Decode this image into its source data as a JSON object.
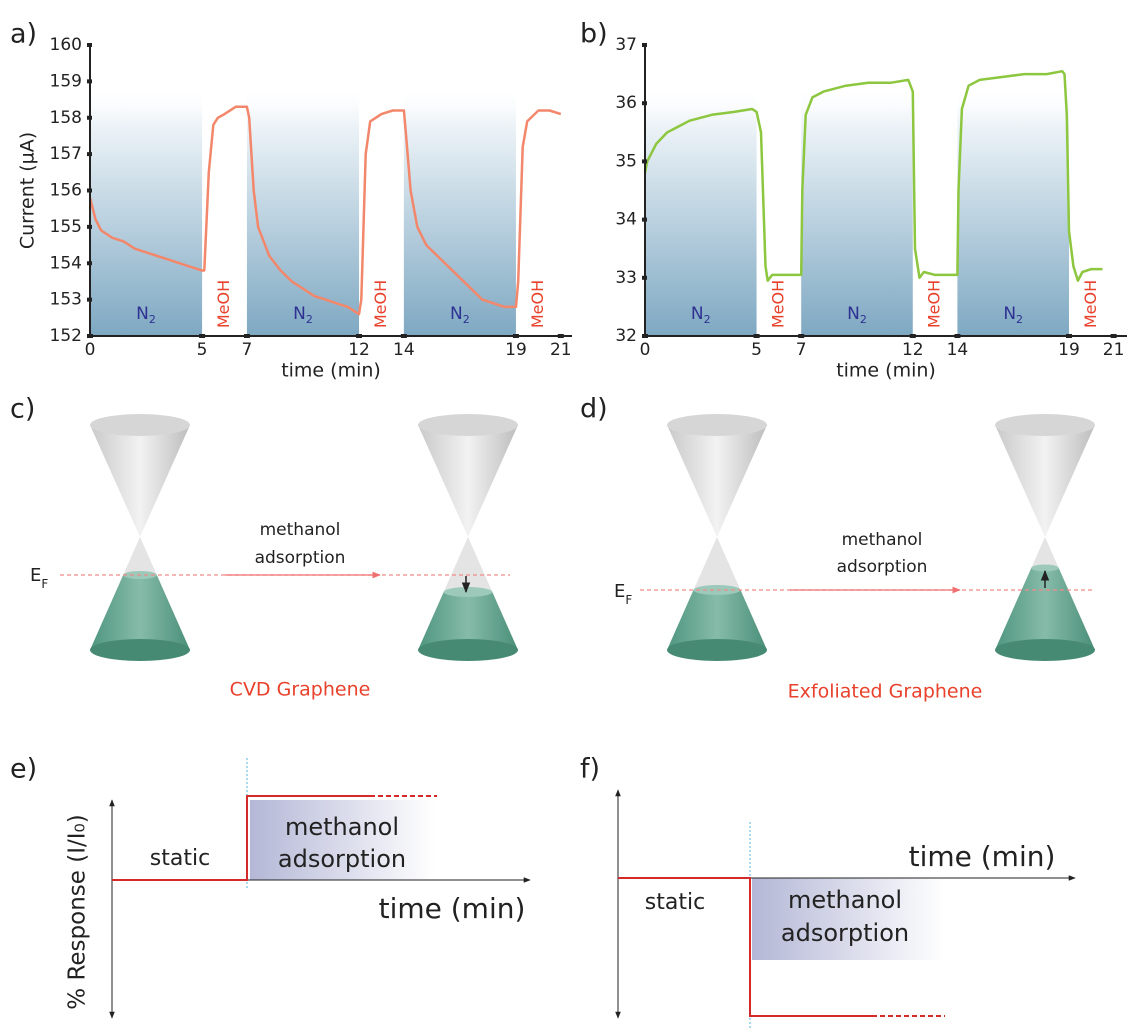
{
  "chart_data": [
    {
      "type": "line",
      "panel_label": "a)",
      "ylabel": "Current (µA)",
      "xlabel": "time (min)",
      "xlim": [
        0,
        21.5
      ],
      "ylim": [
        152,
        160
      ],
      "xticks": [
        0,
        5,
        7,
        12,
        14,
        19,
        21
      ],
      "yticks": [
        152,
        153,
        154,
        155,
        156,
        157,
        158,
        159,
        160
      ],
      "x": [
        0,
        0.25,
        0.5,
        1,
        1.5,
        2,
        2.5,
        3,
        3.5,
        4,
        4.5,
        5,
        5.1,
        5.3,
        5.5,
        5.7,
        6,
        6.5,
        7,
        7.1,
        7.3,
        7.5,
        8,
        8.5,
        9,
        9.5,
        10,
        10.5,
        11,
        11.5,
        12,
        12.1,
        12.3,
        12.5,
        13,
        13.5,
        14,
        14.1,
        14.3,
        14.6,
        15,
        15.5,
        16,
        16.5,
        17,
        17.5,
        18,
        18.5,
        19,
        19.1,
        19.3,
        19.5,
        20,
        20.5,
        21
      ],
      "series": [
        {
          "color": "#f2876b",
          "values": [
            155.8,
            155.2,
            154.9,
            154.7,
            154.6,
            154.4,
            154.3,
            154.2,
            154.1,
            154.0,
            153.9,
            153.8,
            153.8,
            156.5,
            157.8,
            158.0,
            158.1,
            158.3,
            158.3,
            158.0,
            156.0,
            155.0,
            154.2,
            153.8,
            153.5,
            153.3,
            153.1,
            153.0,
            152.9,
            152.8,
            152.6,
            153.0,
            157.0,
            157.9,
            158.1,
            158.2,
            158.2,
            157.5,
            156.0,
            155.0,
            154.5,
            154.2,
            153.9,
            153.6,
            153.3,
            153.0,
            152.9,
            152.8,
            152.8,
            153.5,
            157.2,
            157.9,
            158.2,
            158.2,
            158.1
          ]
        }
      ],
      "bands": [
        {
          "label": "N",
          "sub": "2",
          "range": [
            0,
            5
          ]
        },
        {
          "label": "N",
          "sub": "2",
          "range": [
            7,
            12
          ]
        },
        {
          "label": "N",
          "sub": "2",
          "range": [
            14,
            19
          ]
        }
      ],
      "gaps": [
        {
          "label": "MeOH",
          "range": [
            5,
            7
          ]
        },
        {
          "label": "MeOH",
          "range": [
            12,
            14
          ]
        },
        {
          "label": "MeOH",
          "range": [
            19,
            21
          ]
        }
      ]
    },
    {
      "type": "line",
      "panel_label": "b)",
      "xlabel": "time (min)",
      "xlim": [
        0,
        21.6
      ],
      "ylim": [
        32,
        37
      ],
      "xticks": [
        0,
        5,
        7,
        12,
        14,
        19,
        21
      ],
      "yticks": [
        32,
        33,
        34,
        35,
        36,
        37
      ],
      "x": [
        0,
        0.1,
        0.5,
        1,
        1.5,
        2,
        3,
        4,
        4.8,
        5,
        5.2,
        5.4,
        5.5,
        5.7,
        6,
        7,
        7.05,
        7.2,
        7.5,
        8,
        9,
        10,
        11,
        11.8,
        12,
        12.1,
        12.3,
        12.5,
        13,
        14,
        14.05,
        14.2,
        14.5,
        15,
        16,
        17,
        18,
        18.7,
        18.8,
        18.9,
        19,
        19.2,
        19.4,
        19.6,
        20,
        20.5
      ],
      "series": [
        {
          "color": "#8dc63f",
          "values": [
            34.8,
            35.0,
            35.3,
            35.5,
            35.6,
            35.7,
            35.8,
            35.85,
            35.9,
            35.85,
            35.5,
            33.2,
            32.95,
            33.05,
            33.05,
            33.05,
            34.5,
            35.8,
            36.1,
            36.2,
            36.3,
            36.35,
            36.35,
            36.4,
            36.2,
            33.5,
            33.0,
            33.1,
            33.05,
            33.05,
            34.5,
            35.9,
            36.3,
            36.4,
            36.45,
            36.5,
            36.5,
            36.55,
            36.5,
            35.8,
            33.8,
            33.2,
            32.95,
            33.1,
            33.15,
            33.15
          ]
        }
      ],
      "bands": [
        {
          "label": "N",
          "sub": "2",
          "range": [
            0,
            5
          ]
        },
        {
          "label": "N",
          "sub": "2",
          "range": [
            7,
            12
          ]
        },
        {
          "label": "N",
          "sub": "2",
          "range": [
            14,
            19
          ]
        }
      ],
      "gaps": [
        {
          "label": "MeOH",
          "range": [
            5,
            7
          ]
        },
        {
          "label": "MeOH",
          "range": [
            12,
            14
          ]
        },
        {
          "label": "MeOH",
          "range": [
            19,
            21
          ]
        }
      ]
    }
  ],
  "diagrams": [
    {
      "label": "c)",
      "annotation": [
        "methanol",
        "adsorption"
      ],
      "fermi": {
        "main": "E",
        "sub": "F"
      },
      "caption": "CVD Graphene"
    },
    {
      "label": "d)",
      "annotation": [
        "methanol",
        "adsorption"
      ],
      "fermi": {
        "main": "E",
        "sub": "F"
      },
      "caption": "Exfoliated Graphene"
    }
  ],
  "schematics": [
    {
      "label": "e)",
      "ylabel": "% Response (I/I₀)",
      "state": "static",
      "region": [
        "methanol",
        "adsorption"
      ],
      "xlabel": "time (min)"
    },
    {
      "label": "f)",
      "state": "static",
      "region": [
        "methanol",
        "adsorption"
      ],
      "xlabel": "time (min)"
    }
  ]
}
